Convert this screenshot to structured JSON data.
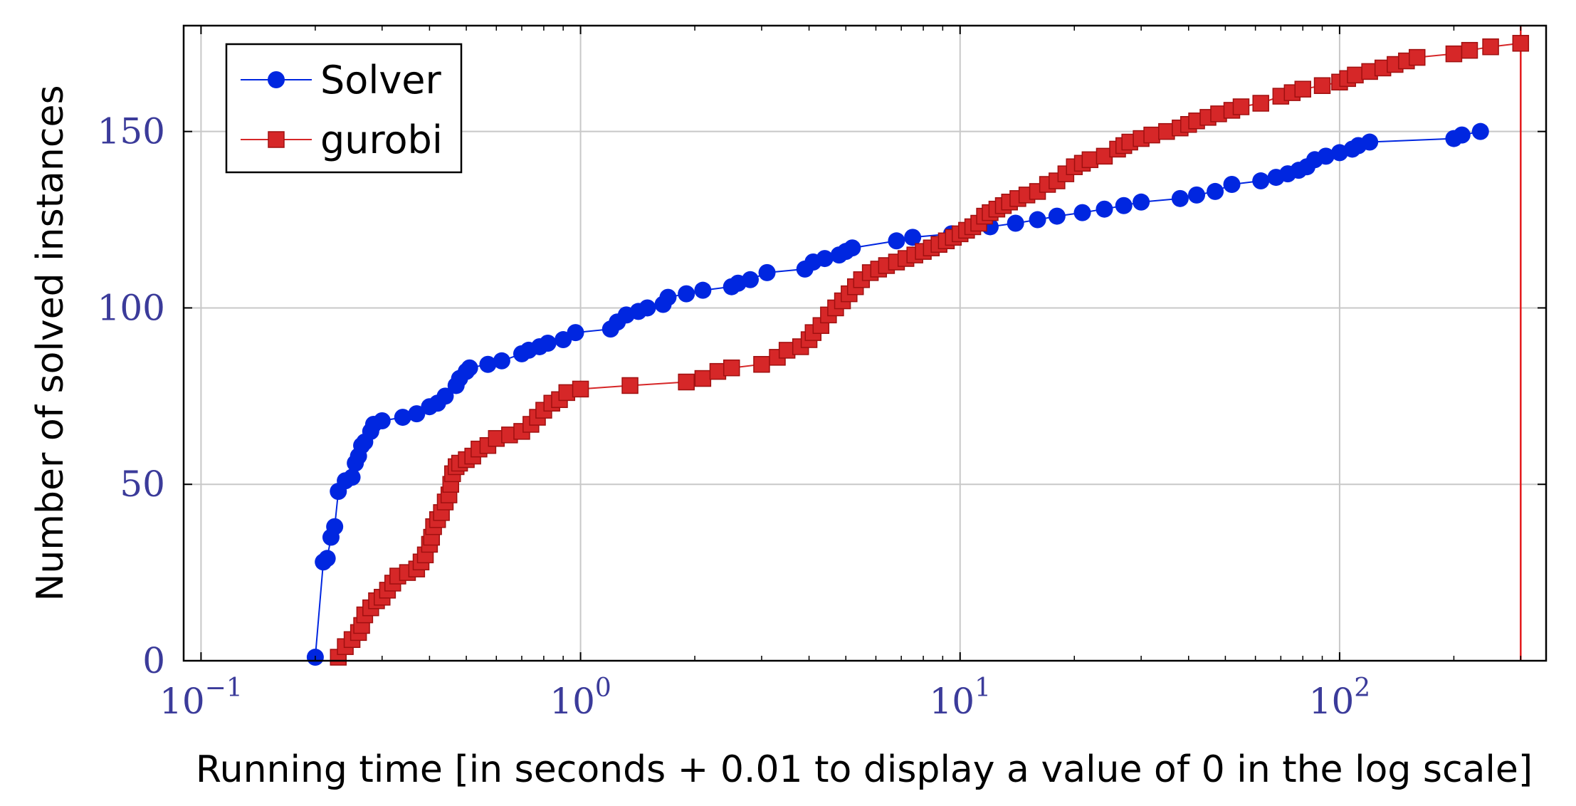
{
  "chart_data": {
    "type": "line",
    "xscale": "log",
    "xlabel": "Running time [in seconds + 0.01 to display a value of 0 in the log scale]",
    "ylabel": "Number of solved instances",
    "xlim": [
      0.09,
      350
    ],
    "ylim": [
      0,
      180
    ],
    "xticks": [
      {
        "value": 0.1,
        "base": "10",
        "exp": "−1"
      },
      {
        "value": 1,
        "base": "10",
        "exp": "0"
      },
      {
        "value": 10,
        "base": "10",
        "exp": "1"
      },
      {
        "value": 100,
        "base": "10",
        "exp": "2"
      }
    ],
    "yticks": [
      {
        "value": 0,
        "label": "0"
      },
      {
        "value": 50,
        "label": "50"
      },
      {
        "value": 100,
        "label": "100"
      },
      {
        "value": 150,
        "label": "150"
      }
    ],
    "grid": true,
    "legend_position": "top-left",
    "time_limit": 300,
    "time_limit_color": "#e41a1c",
    "series": [
      {
        "name": "Solver",
        "color": "#0026e0",
        "marker": "circle",
        "points": [
          [
            0.2,
            1
          ],
          [
            0.21,
            28
          ],
          [
            0.215,
            29
          ],
          [
            0.22,
            35
          ],
          [
            0.225,
            38
          ],
          [
            0.23,
            48
          ],
          [
            0.24,
            51
          ],
          [
            0.25,
            52
          ],
          [
            0.255,
            56
          ],
          [
            0.26,
            58
          ],
          [
            0.265,
            61
          ],
          [
            0.27,
            62
          ],
          [
            0.28,
            65
          ],
          [
            0.285,
            67
          ],
          [
            0.3,
            68
          ],
          [
            0.34,
            69
          ],
          [
            0.37,
            70
          ],
          [
            0.4,
            72
          ],
          [
            0.42,
            73
          ],
          [
            0.44,
            75
          ],
          [
            0.47,
            78
          ],
          [
            0.48,
            80
          ],
          [
            0.5,
            82
          ],
          [
            0.51,
            83
          ],
          [
            0.57,
            84
          ],
          [
            0.62,
            85
          ],
          [
            0.7,
            87
          ],
          [
            0.73,
            88
          ],
          [
            0.78,
            89
          ],
          [
            0.82,
            90
          ],
          [
            0.9,
            91
          ],
          [
            0.97,
            93
          ],
          [
            1.2,
            94
          ],
          [
            1.25,
            96
          ],
          [
            1.32,
            98
          ],
          [
            1.42,
            99
          ],
          [
            1.5,
            100
          ],
          [
            1.65,
            101
          ],
          [
            1.7,
            103
          ],
          [
            1.9,
            104
          ],
          [
            2.1,
            105
          ],
          [
            2.5,
            106
          ],
          [
            2.6,
            107
          ],
          [
            2.8,
            108
          ],
          [
            3.1,
            110
          ],
          [
            3.9,
            111
          ],
          [
            4.1,
            113
          ],
          [
            4.4,
            114
          ],
          [
            4.8,
            115
          ],
          [
            5.0,
            116
          ],
          [
            5.2,
            117
          ],
          [
            6.8,
            119
          ],
          [
            7.5,
            120
          ],
          [
            9.5,
            121
          ],
          [
            12,
            123
          ],
          [
            14,
            124
          ],
          [
            16,
            125
          ],
          [
            18,
            126
          ],
          [
            21,
            127
          ],
          [
            24,
            128
          ],
          [
            27,
            129
          ],
          [
            30,
            130
          ],
          [
            38,
            131
          ],
          [
            42,
            132
          ],
          [
            47,
            133
          ],
          [
            52,
            135
          ],
          [
            62,
            136
          ],
          [
            68,
            137
          ],
          [
            73,
            138
          ],
          [
            78,
            139
          ],
          [
            82,
            140
          ],
          [
            86,
            142
          ],
          [
            92,
            143
          ],
          [
            100,
            144
          ],
          [
            108,
            145
          ],
          [
            112,
            146
          ],
          [
            120,
            147
          ],
          [
            200,
            148
          ],
          [
            210,
            149
          ],
          [
            235,
            150
          ]
        ]
      },
      {
        "name": "gurobi",
        "color": "#d62728",
        "marker": "square",
        "points": [
          [
            0.23,
            1
          ],
          [
            0.24,
            4
          ],
          [
            0.25,
            6
          ],
          [
            0.26,
            8
          ],
          [
            0.265,
            10
          ],
          [
            0.27,
            13
          ],
          [
            0.28,
            15
          ],
          [
            0.29,
            17
          ],
          [
            0.3,
            18
          ],
          [
            0.31,
            20
          ],
          [
            0.32,
            22
          ],
          [
            0.33,
            24
          ],
          [
            0.35,
            25
          ],
          [
            0.37,
            26
          ],
          [
            0.38,
            28
          ],
          [
            0.39,
            30
          ],
          [
            0.4,
            33
          ],
          [
            0.405,
            35
          ],
          [
            0.41,
            38
          ],
          [
            0.42,
            40
          ],
          [
            0.43,
            42
          ],
          [
            0.44,
            45
          ],
          [
            0.45,
            47
          ],
          [
            0.455,
            50
          ],
          [
            0.46,
            53
          ],
          [
            0.47,
            55
          ],
          [
            0.48,
            56
          ],
          [
            0.5,
            57
          ],
          [
            0.52,
            58
          ],
          [
            0.54,
            60
          ],
          [
            0.57,
            61
          ],
          [
            0.6,
            63
          ],
          [
            0.65,
            64
          ],
          [
            0.7,
            65
          ],
          [
            0.74,
            67
          ],
          [
            0.77,
            69
          ],
          [
            0.8,
            71
          ],
          [
            0.84,
            73
          ],
          [
            0.88,
            74
          ],
          [
            0.92,
            76
          ],
          [
            1.0,
            77
          ],
          [
            1.35,
            78
          ],
          [
            1.9,
            79
          ],
          [
            2.1,
            80
          ],
          [
            2.3,
            82
          ],
          [
            2.5,
            83
          ],
          [
            3.0,
            84
          ],
          [
            3.3,
            86
          ],
          [
            3.5,
            88
          ],
          [
            3.8,
            89
          ],
          [
            4.0,
            91
          ],
          [
            4.1,
            93
          ],
          [
            4.3,
            95
          ],
          [
            4.5,
            98
          ],
          [
            4.7,
            100
          ],
          [
            4.9,
            102
          ],
          [
            5.1,
            104
          ],
          [
            5.3,
            106
          ],
          [
            5.5,
            108
          ],
          [
            5.8,
            110
          ],
          [
            6.1,
            111
          ],
          [
            6.4,
            112
          ],
          [
            6.8,
            113
          ],
          [
            7.2,
            114
          ],
          [
            7.6,
            115
          ],
          [
            8.0,
            116
          ],
          [
            8.4,
            117
          ],
          [
            8.8,
            118
          ],
          [
            9.2,
            119
          ],
          [
            9.6,
            120
          ],
          [
            10.0,
            121
          ],
          [
            10.4,
            122
          ],
          [
            10.8,
            123
          ],
          [
            11.2,
            124
          ],
          [
            11.6,
            126
          ],
          [
            12.0,
            127
          ],
          [
            12.5,
            128
          ],
          [
            13.0,
            129
          ],
          [
            13.5,
            130
          ],
          [
            14.2,
            131
          ],
          [
            15,
            132
          ],
          [
            16,
            133
          ],
          [
            17,
            135
          ],
          [
            18,
            136
          ],
          [
            19,
            138
          ],
          [
            20,
            140
          ],
          [
            21,
            141
          ],
          [
            22,
            142
          ],
          [
            24,
            143
          ],
          [
            26,
            145
          ],
          [
            27,
            146
          ],
          [
            28,
            147
          ],
          [
            30,
            148
          ],
          [
            32,
            149
          ],
          [
            35,
            150
          ],
          [
            38,
            151
          ],
          [
            40,
            152
          ],
          [
            42,
            153
          ],
          [
            45,
            154
          ],
          [
            48,
            155
          ],
          [
            52,
            156
          ],
          [
            55,
            157
          ],
          [
            62,
            158
          ],
          [
            70,
            160
          ],
          [
            75,
            161
          ],
          [
            80,
            162
          ],
          [
            90,
            163
          ],
          [
            100,
            164
          ],
          [
            105,
            165
          ],
          [
            110,
            166
          ],
          [
            120,
            167
          ],
          [
            130,
            168
          ],
          [
            140,
            169
          ],
          [
            150,
            170
          ],
          [
            160,
            171
          ],
          [
            200,
            172
          ],
          [
            220,
            173
          ],
          [
            250,
            174
          ],
          [
            300,
            175
          ]
        ]
      }
    ]
  }
}
